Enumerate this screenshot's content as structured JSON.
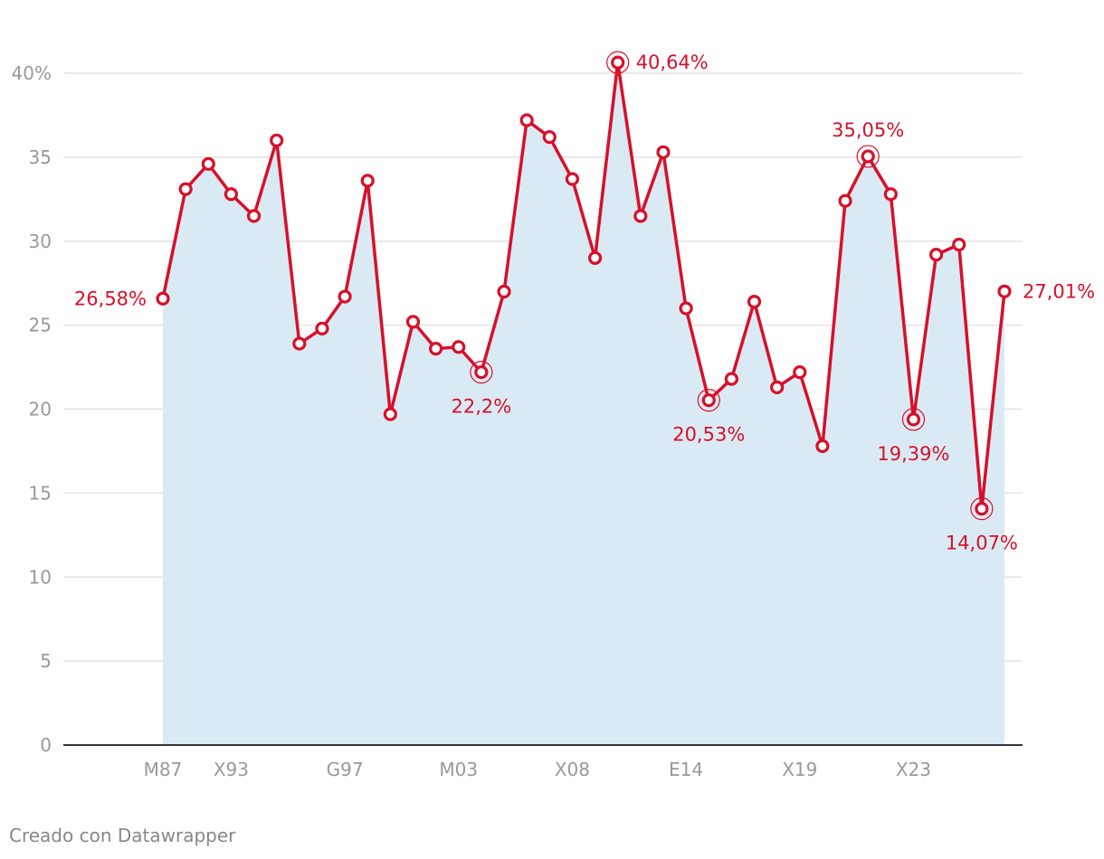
{
  "footer": {
    "credit": "Creado con Datawrapper"
  },
  "chart_data": {
    "type": "area",
    "colors": {
      "line": "#d7102a",
      "area": "#daeaf4",
      "grid": "#e3e3e3",
      "axis": "#333333",
      "tick_text": "#999999"
    },
    "x": [
      1986,
      1989,
      1990,
      1991,
      1992,
      1993,
      1994,
      1995,
      1996,
      1997,
      1998,
      1999,
      2000,
      2001,
      2002,
      2003,
      2004,
      2005,
      2006,
      2007,
      2008,
      2009,
      2010,
      2011,
      2012,
      2013,
      2014,
      2015,
      2016,
      2017,
      2018,
      2019,
      2020,
      2021,
      2022,
      2023,
      2024,
      2025
    ],
    "series": [
      {
        "values": [
          26.58,
          33.1,
          34.6,
          32.8,
          31.5,
          36.0,
          23.9,
          24.8,
          26.7,
          33.6,
          19.7,
          25.2,
          23.6,
          23.7,
          22.2,
          27.0,
          37.2,
          36.2,
          33.7,
          29.0,
          40.64,
          31.5,
          35.3,
          26.0,
          20.53,
          21.8,
          26.4,
          21.3,
          22.2,
          17.8,
          32.4,
          35.05,
          32.8,
          19.39,
          29.2,
          29.8,
          14.07,
          27.01
        ]
      }
    ],
    "x_ticks": [
      {
        "value": 1986,
        "label": "M87"
      },
      {
        "value": 1991,
        "label": "X93"
      },
      {
        "value": 1996,
        "label": "G97"
      },
      {
        "value": 2001,
        "label": "M03"
      },
      {
        "value": 2006,
        "label": "X08"
      },
      {
        "value": 2011,
        "label": "E14"
      },
      {
        "value": 2016,
        "label": "X19"
      },
      {
        "value": 2021,
        "label": "X23"
      }
    ],
    "y_ticks": [
      {
        "value": 0,
        "label": "0"
      },
      {
        "value": 5,
        "label": "5"
      },
      {
        "value": 10,
        "label": "10"
      },
      {
        "value": 15,
        "label": "15"
      },
      {
        "value": 20,
        "label": "20"
      },
      {
        "value": 25,
        "label": "25"
      },
      {
        "value": 30,
        "label": "30"
      },
      {
        "value": 35,
        "label": "35"
      },
      {
        "value": 40,
        "label": "40%"
      }
    ],
    "ylim": [
      0,
      40
    ],
    "grid": true,
    "annotations": [
      {
        "index": 0,
        "label": "26,58%",
        "position": "left",
        "highlight": false
      },
      {
        "index": 14,
        "label": "22,2%",
        "position": "below",
        "highlight": true
      },
      {
        "index": 20,
        "label": "40,64%",
        "position": "right",
        "highlight": true
      },
      {
        "index": 24,
        "label": "20,53%",
        "position": "below",
        "highlight": true
      },
      {
        "index": 31,
        "label": "35,05%",
        "position": "above",
        "highlight": true
      },
      {
        "index": 33,
        "label": "19,39%",
        "position": "below",
        "highlight": true
      },
      {
        "index": 36,
        "label": "14,07%",
        "position": "below",
        "highlight": true
      },
      {
        "index": 37,
        "label": "27,01%",
        "position": "right",
        "highlight": false
      }
    ]
  }
}
